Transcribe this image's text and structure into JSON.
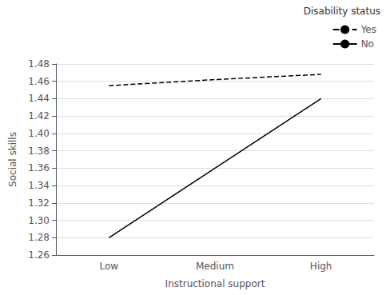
{
  "chart_data": {
    "type": "line",
    "categories": [
      "Low",
      "Medium",
      "High"
    ],
    "series": [
      {
        "name": "Yes",
        "color": "#000000",
        "line_style": "dashed",
        "values": [
          1.455,
          1.462,
          1.468
        ]
      },
      {
        "name": "No",
        "color": "#000000",
        "line_style": "solid",
        "values": [
          1.28,
          1.36,
          1.44
        ]
      }
    ],
    "xlabel": "Instructional support",
    "ylabel": "Social skills",
    "ylim": [
      1.26,
      1.48
    ],
    "yticks": [
      1.26,
      1.28,
      {
        "value": 1.3,
        "label": "1.30"
      },
      1.32,
      1.34,
      1.36,
      1.38,
      {
        "value": 1.4,
        "label": "1.40"
      },
      1.42,
      1.44,
      1.46,
      1.48
    ],
    "grid": true,
    "legend": "upper right",
    "legend_title": "Disability status"
  }
}
